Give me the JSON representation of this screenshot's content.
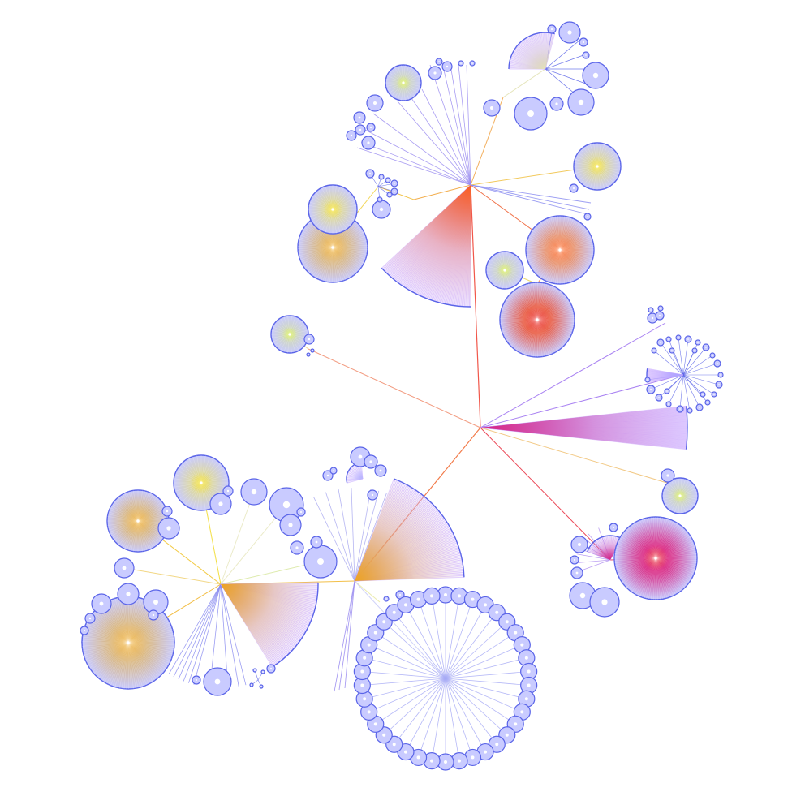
{
  "diagram": {
    "type": "radial-tree",
    "title": "",
    "labels_visible": false,
    "colors": {
      "background": "#ffffff",
      "leaf": "#5a64e8",
      "leaf_fill": "#c9cbff",
      "fan_light": "#c9a8ff",
      "hot_red": "#e81010",
      "hot_orange": "#ff5a14",
      "warm_amber": "#f0a414",
      "warm_yellow": "#f5e020",
      "lime": "#d8f04a",
      "magenta": "#d81a7a",
      "violet_edge": "#8a6cff"
    }
  }
}
